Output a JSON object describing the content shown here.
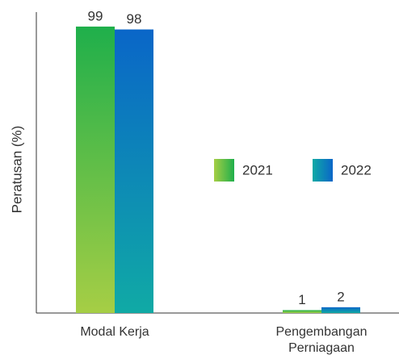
{
  "chart_data": {
    "type": "bar",
    "y_label": "Peratusan (%)",
    "categories": [
      "Modal Kerja",
      "Pengembangan Perniagaan"
    ],
    "series": [
      {
        "name": "2021",
        "color": [
          "#1faf4b",
          "#a6ce45"
        ],
        "values": [
          99,
          1
        ]
      },
      {
        "name": "2022",
        "color": [
          "#0a66c8",
          "#10aaa5"
        ],
        "values": [
          98,
          2
        ]
      }
    ],
    "ylim": [
      0,
      104
    ]
  }
}
